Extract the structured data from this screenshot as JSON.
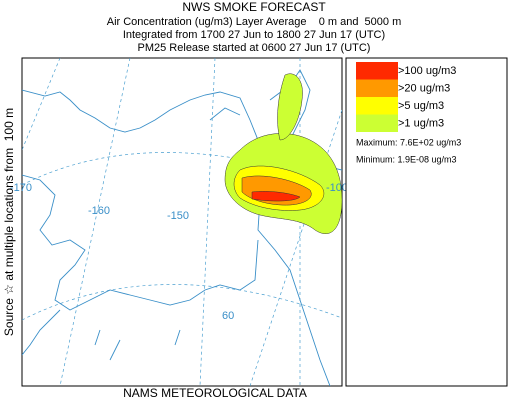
{
  "header": {
    "title": "NWS SMOKE FORECAST",
    "lines": [
      "Air Concentration (ug/m3) Layer Average    0 m and  5000 m",
      "Integrated from 1700 27 Jun to 1800 27 Jun 17 (UTC)",
      "PM25 Release started at 0600 27 Jun 17 (UTC)"
    ]
  },
  "map": {
    "grid_labels": [
      "-170",
      "-160",
      "-150",
      "-100",
      "60"
    ]
  },
  "legend": {
    "items": [
      {
        "label": ">100 ug/m3",
        "color": "#ff2a00"
      },
      {
        "label": ">20 ug/m3",
        "color": "#ff9900"
      },
      {
        "label": ">5 ug/m3",
        "color": "#ffff00"
      },
      {
        "label": ">1 ug/m3",
        "color": "#ccff33"
      }
    ],
    "maximum": "Maximum: 7.6E+02 ug/m3",
    "minimum": "Minimum: 1.9E-08 ug/m3"
  },
  "side_text": "Source ☆ at multiple locations from  100 m",
  "footer": "NAMS METEOROLOGICAL DATA"
}
